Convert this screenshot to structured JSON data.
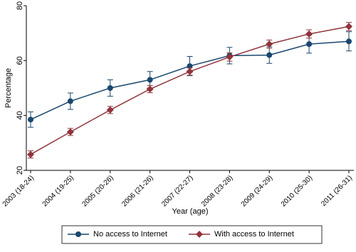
{
  "chart_data": {
    "type": "line",
    "categories": [
      "2003 (18-24)",
      "2004 (19-25)",
      "2005 (20-26)",
      "2006 (21-26)",
      "2007 (22-27)",
      "2008 (23-28)",
      "2009 (24-29)",
      "2010 (25-30)",
      "2011 (26-31)"
    ],
    "series": [
      {
        "name": "No access to Internet",
        "color": "#1a476f",
        "marker": "circle",
        "values": [
          38.5,
          45.2,
          50,
          53,
          58,
          61.8,
          62,
          66,
          67
        ],
        "errors": [
          2.8,
          3,
          3,
          3,
          3.5,
          3,
          3,
          3.3,
          3.5
        ]
      },
      {
        "name": "With access to Internet",
        "color": "#90353b",
        "marker": "diamond",
        "values": [
          25.8,
          34,
          42,
          49.6,
          56,
          61.3,
          66,
          69.7,
          72.4
        ],
        "errors": [
          1.3,
          1.3,
          1.3,
          1.3,
          1.3,
          1.5,
          1.5,
          1.5,
          1.5
        ]
      }
    ],
    "xlabel": "Year (age)",
    "ylabel": "Percentage",
    "ylim": [
      20,
      80
    ],
    "yticks": [
      20,
      40,
      60,
      80
    ],
    "legend": "bottom"
  }
}
